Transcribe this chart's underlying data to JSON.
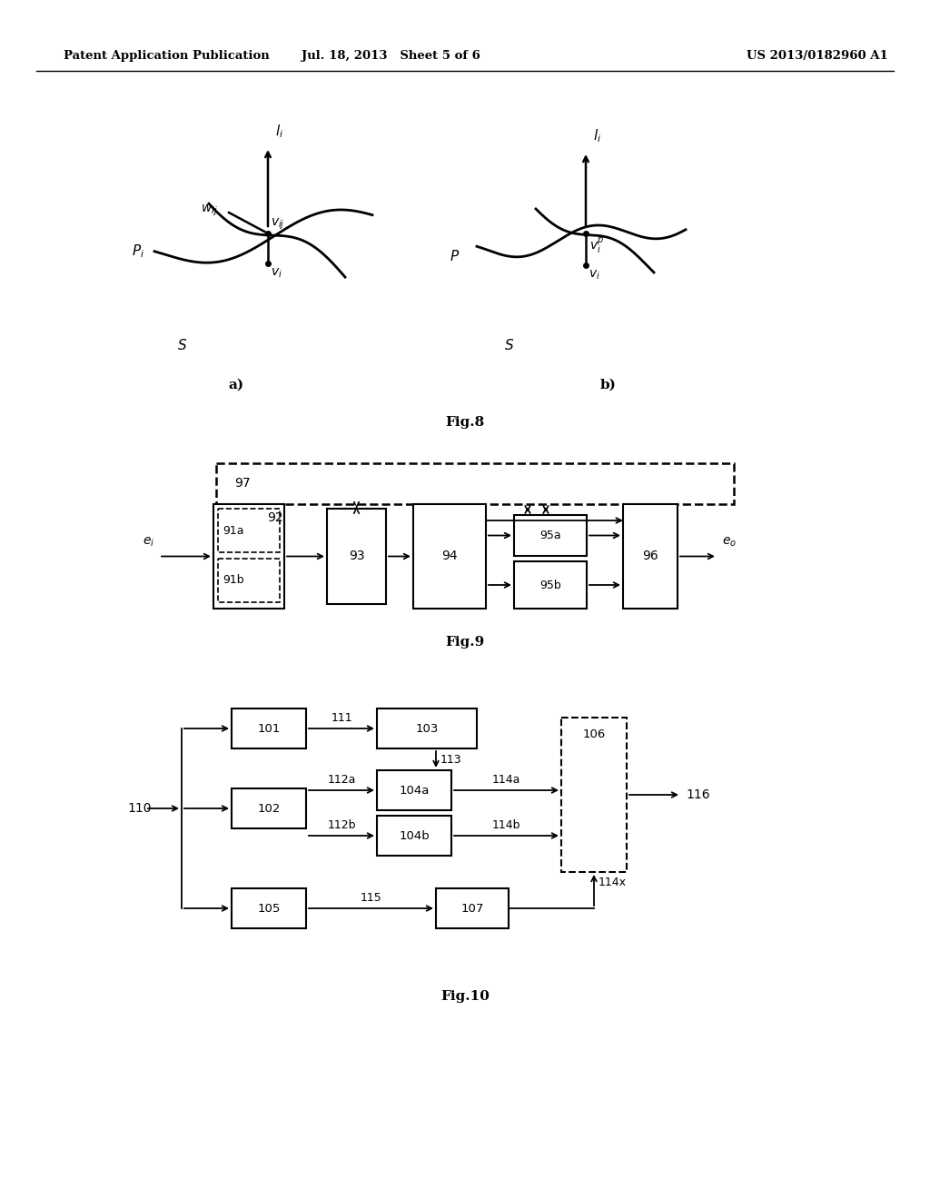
{
  "header_left": "Patent Application Publication",
  "header_mid": "Jul. 18, 2013   Sheet 5 of 6",
  "header_right": "US 2013/0182960 A1",
  "fig8_label": "Fig.8",
  "fig9_label": "Fig.9",
  "fig10_label": "Fig.10",
  "bg_color": "#ffffff",
  "line_color": "#000000"
}
